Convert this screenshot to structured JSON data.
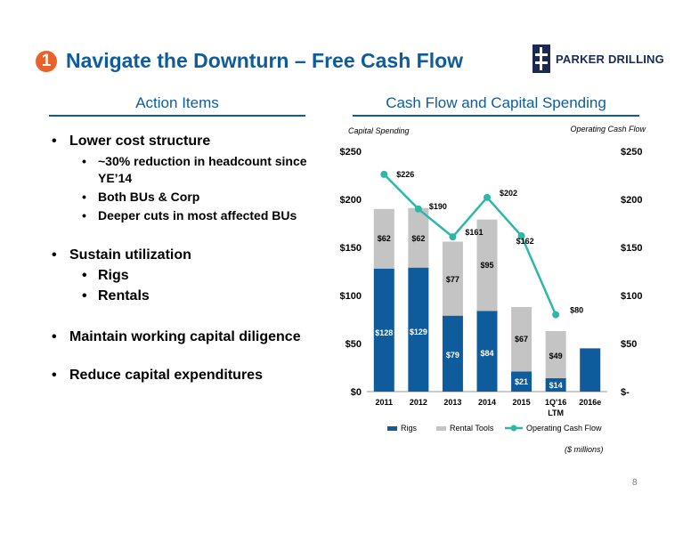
{
  "header": {
    "badge_number": "1",
    "title": "Navigate the Downturn – Free Cash Flow",
    "logo_text": "PARKER DRILLING"
  },
  "left": {
    "heading": "Action Items",
    "bullets": [
      {
        "text": "Lower cost structure",
        "subs": [
          "~30% reduction in headcount since YE’14",
          "Both BUs & Corp",
          "Deeper cuts in most affected BUs"
        ]
      },
      {
        "text": "Sustain utilization",
        "subs": [
          "Rigs",
          "Rentals"
        ]
      },
      {
        "text": "Maintain working capital diligence",
        "subs": []
      },
      {
        "text": "Reduce capital expenditures",
        "subs": []
      }
    ]
  },
  "right": {
    "heading": "Cash Flow and Capital Spending",
    "footnote": "($ millions)",
    "page_number": "8"
  },
  "chart_data": {
    "type": "bar",
    "stacked": true,
    "categories": [
      "2011",
      "2012",
      "2013",
      "2014",
      "2015",
      "1Q'16\nLTM",
      "2016e"
    ],
    "series": [
      {
        "name": "Rigs",
        "values": [
          128,
          129,
          79,
          84,
          21,
          14,
          45
        ],
        "labels": [
          "$128",
          "$129",
          "$79",
          "$84",
          "$21",
          "$14",
          ""
        ],
        "color": "#0E5C9C"
      },
      {
        "name": "Rental Tools",
        "values": [
          62,
          62,
          77,
          95,
          67,
          49,
          0
        ],
        "labels": [
          "$62",
          "$62",
          "$77",
          "$95",
          "$67",
          "$49",
          ""
        ],
        "color": "#C4C4C4"
      },
      {
        "name": "Operating Cash Flow",
        "type": "line",
        "values": [
          226,
          190,
          161,
          202,
          162,
          80,
          null
        ],
        "labels": [
          "$226",
          "$190",
          "$161",
          "$202",
          "$162",
          "$80",
          ""
        ],
        "color": "#2EB6A8"
      }
    ],
    "left_axis_title": "Capital Spending",
    "right_axis_title": "Operating Cash Flow",
    "ylim": [
      0,
      250
    ],
    "yticks_left": [
      "$0",
      "$50",
      "$100",
      "$150",
      "$200",
      "$250"
    ],
    "yticks_right": [
      "$-",
      "$50",
      "$100",
      "$150",
      "$200",
      "$250"
    ],
    "legend_position": "bottom",
    "grid": false
  }
}
